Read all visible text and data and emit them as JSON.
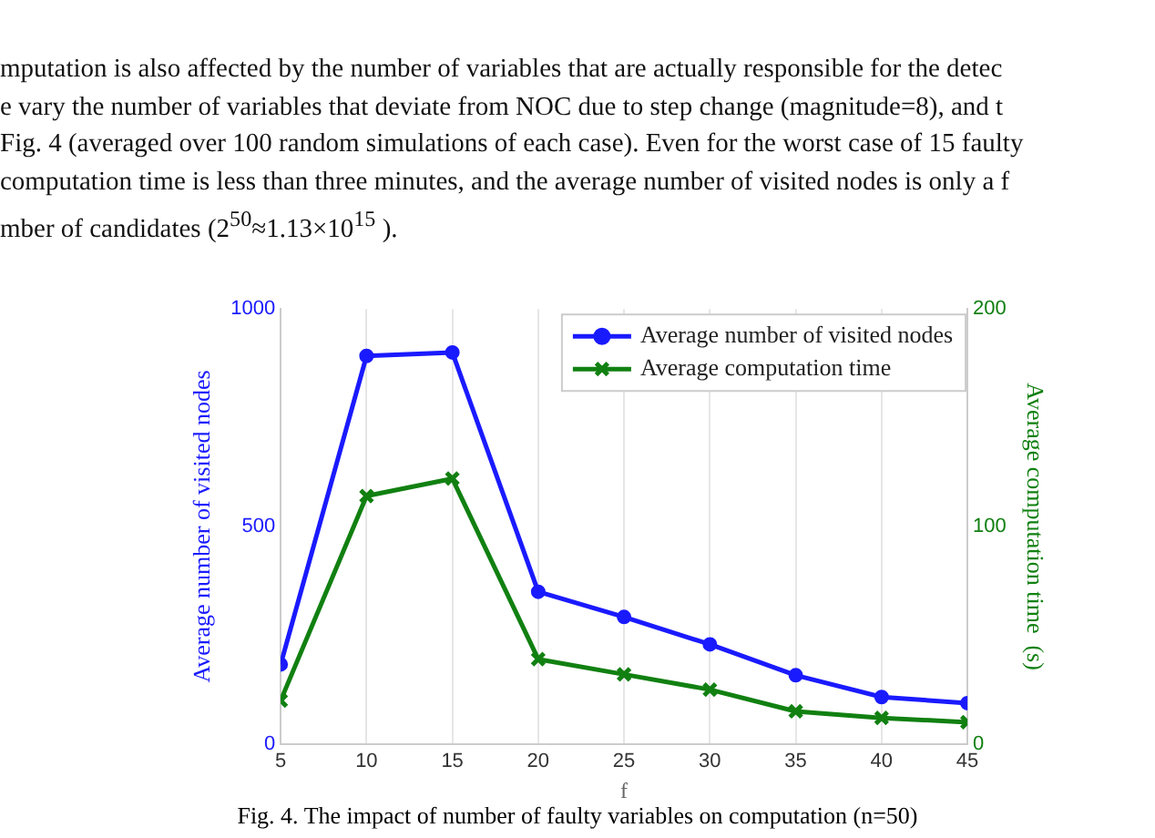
{
  "chart_data": {
    "type": "line",
    "xlabel": "f",
    "ylabel": "Average number of visited nodes",
    "y2label": "Average computation time  (s)",
    "x": [
      5,
      10,
      15,
      20,
      25,
      30,
      35,
      40,
      45
    ],
    "series": [
      {
        "name": "Average number of visited nodes",
        "color": "#1a1aff",
        "marker": "circle",
        "values": [
          183,
          892,
          900,
          350,
          292,
          229,
          158,
          108,
          94
        ]
      },
      {
        "name": "Average computation time",
        "color": "#118011",
        "marker": "cross",
        "axis": "y2",
        "values": [
          20,
          114,
          122,
          39,
          32,
          25,
          15,
          12,
          10
        ]
      }
    ],
    "xlim": [
      5,
      45
    ],
    "xticks": [
      5,
      10,
      15,
      20,
      25,
      30,
      35,
      40,
      45
    ],
    "ylim": [
      0,
      1000
    ],
    "yticks": [
      0,
      500,
      1000
    ],
    "y2lim": [
      0,
      200
    ],
    "y2ticks": [
      0,
      100,
      200
    ],
    "grid": "x",
    "legend": "top right",
    "line_style": "solid",
    "annotations": [
      "mputation is also affected by the number of variables that are actually responsible for the detec",
      "e vary the number of variables that deviate from NOC due to step change (magnitude=8), and t",
      "Fig. 4 (averaged over 100 random simulations of each case). Even for the worst case of 15 faulty",
      "computation time is less than three minutes, and the average number of visited nodes is only a f",
      "mber of candidates (2$^{50}$≈1.13×10$^{15}$ ).",
      "Fig. 4. The impact of number of faulty variables on computation (n=50)"
    ]
  }
}
